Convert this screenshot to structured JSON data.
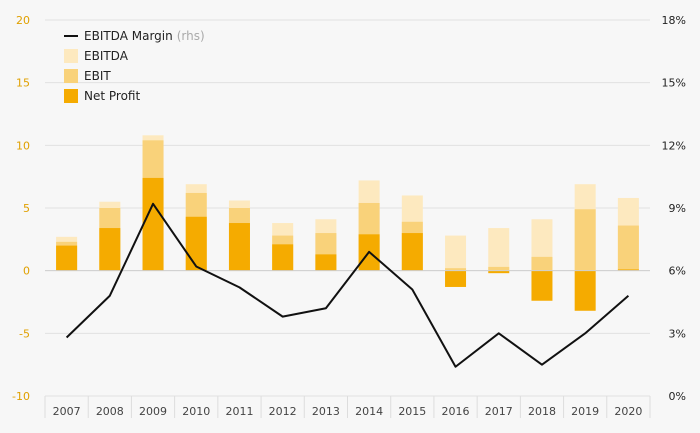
{
  "chart_data": {
    "type": "bar",
    "categories": [
      "2007",
      "2008",
      "2009",
      "2010",
      "2011",
      "2012",
      "2013",
      "2014",
      "2015",
      "2016",
      "2017",
      "2018",
      "2019",
      "2020"
    ],
    "series": [
      {
        "name": "EBITDA",
        "type": "bar",
        "axis": "left",
        "color": "#fde9bf",
        "values": [
          2.7,
          5.5,
          10.8,
          6.9,
          5.6,
          3.8,
          4.1,
          7.2,
          6.0,
          2.8,
          3.4,
          4.1,
          6.9,
          5.8
        ]
      },
      {
        "name": "EBIT",
        "type": "bar",
        "axis": "left",
        "color": "#f9d27a",
        "values": [
          2.3,
          5.0,
          10.4,
          6.2,
          5.0,
          2.8,
          3.0,
          5.4,
          3.9,
          0.2,
          0.3,
          1.1,
          4.9,
          3.6
        ]
      },
      {
        "name": "Net Profit",
        "type": "bar",
        "axis": "left",
        "color": "#f5ab00",
        "values": [
          2.0,
          3.4,
          7.4,
          4.3,
          3.8,
          2.1,
          1.3,
          2.9,
          3.0,
          -1.3,
          -0.2,
          -2.4,
          -3.2,
          0.1
        ]
      },
      {
        "name": "EBITDA Margin",
        "note": "(rhs)",
        "type": "line",
        "axis": "right",
        "color": "#111111",
        "values": [
          2.8,
          4.8,
          9.2,
          6.2,
          5.2,
          3.8,
          4.2,
          6.9,
          5.1,
          1.4,
          3.0,
          1.5,
          3.0,
          4.8
        ]
      }
    ],
    "ylim_left": [
      -10,
      20
    ],
    "yticks_left": [
      "-10",
      "-5",
      "0",
      "5",
      "10",
      "15",
      "20"
    ],
    "ylim_right": [
      0,
      18
    ],
    "yticks_right": [
      "0%",
      "3%",
      "6%",
      "9%",
      "12%",
      "15%",
      "18%"
    ],
    "legend_position": "top-left",
    "grid": true
  }
}
